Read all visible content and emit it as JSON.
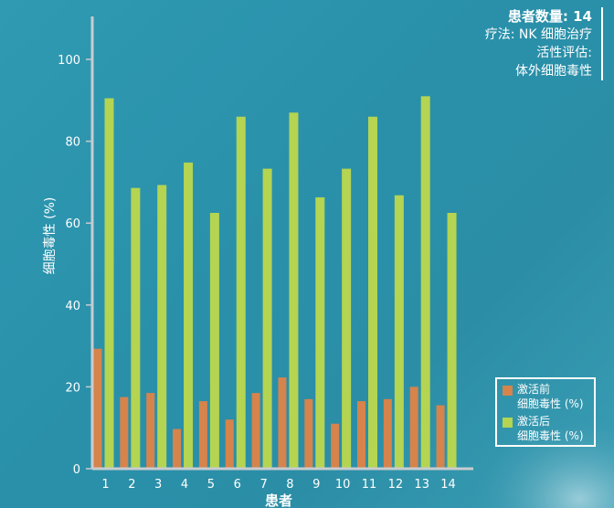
{
  "colors": {
    "before": "#d6834c",
    "after": "#b4d452",
    "axis": "#c8ccd0",
    "text": "#ffffff"
  },
  "info": {
    "count_label": "患者数量: 14",
    "therapy": "疗法: NK 细胞治疗",
    "assessment_line1": "活性评估:",
    "assessment_line2": "体外细胞毒性"
  },
  "legend": {
    "before_label": "激活前\n细胞毒性 (%)",
    "after_label": "激活后\n细胞毒性 (%)"
  },
  "chart_data": {
    "type": "bar",
    "title": "",
    "xlabel": "患者",
    "ylabel": "细胞毒性 (%)",
    "ylim": [
      0,
      110
    ],
    "yticks": [
      0,
      20,
      40,
      60,
      80,
      100
    ],
    "grid": false,
    "legend_position": "bottom-right",
    "categories": [
      "1",
      "2",
      "3",
      "4",
      "5",
      "6",
      "7",
      "8",
      "9",
      "10",
      "11",
      "12",
      "13",
      "14"
    ],
    "series": [
      {
        "name": "激活前 细胞毒性 (%)",
        "color": "#d6834c",
        "values": [
          29.3,
          17.5,
          18.5,
          9.7,
          16.5,
          12.0,
          18.5,
          22.3,
          17.0,
          11.0,
          16.5,
          17.0,
          20.0,
          15.5
        ]
      },
      {
        "name": "激活后 细胞毒性 (%)",
        "color": "#b4d452",
        "values": [
          90.5,
          68.6,
          69.3,
          74.8,
          62.5,
          86.0,
          73.3,
          87.0,
          66.3,
          73.3,
          86.0,
          66.8,
          91.0,
          62.5
        ]
      }
    ]
  }
}
